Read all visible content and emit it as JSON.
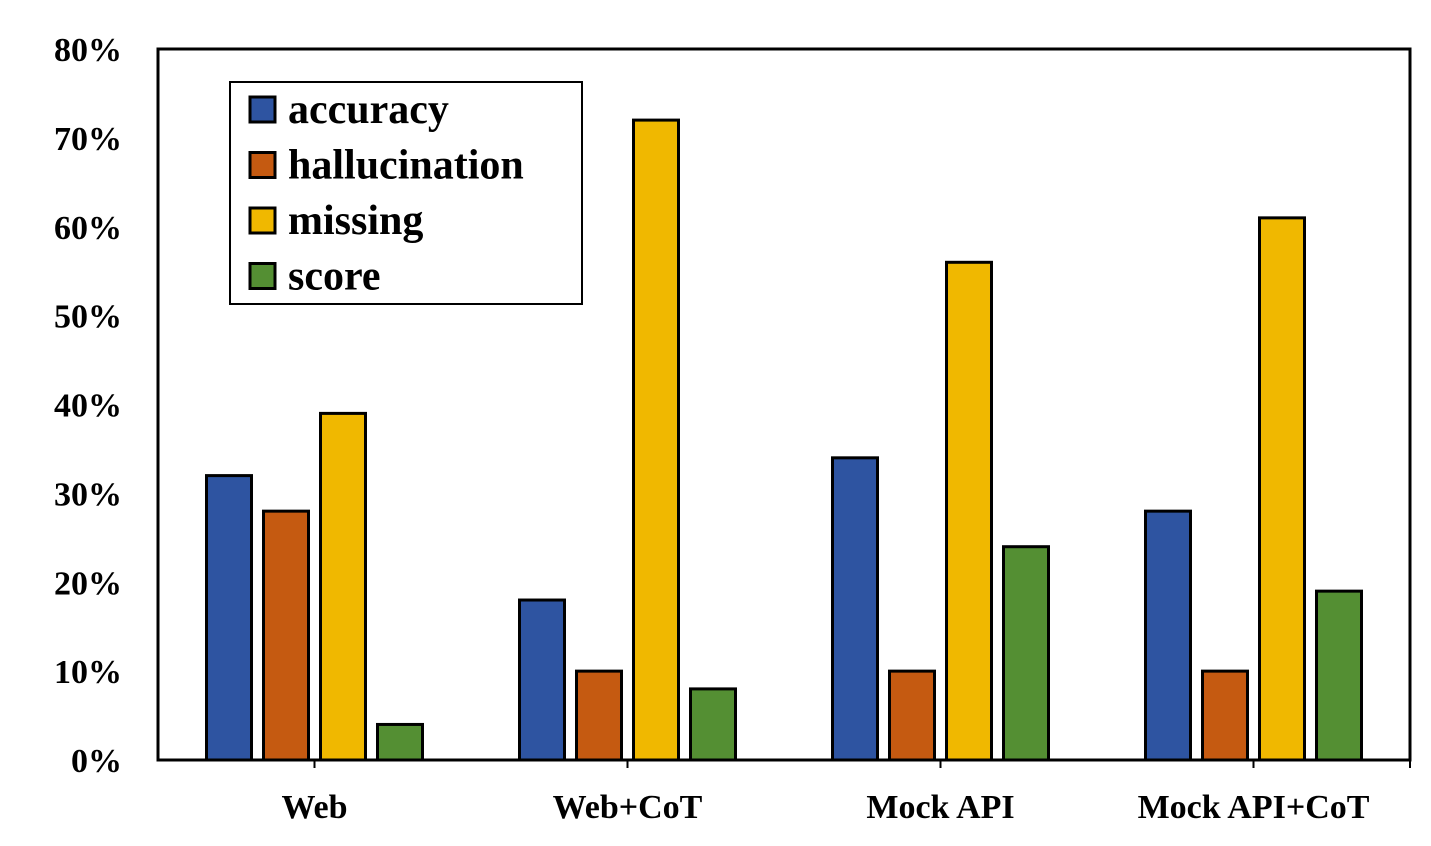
{
  "chart_data": {
    "type": "bar",
    "title": "",
    "xlabel": "",
    "ylabel": "",
    "categories": [
      "Web",
      "Web+CoT",
      "Mock API",
      "Mock API+CoT"
    ],
    "series": [
      {
        "name": "accuracy",
        "color": "#2E54A1",
        "values": [
          32,
          18,
          34,
          28
        ]
      },
      {
        "name": "hallucination",
        "color": "#C55A11",
        "values": [
          28,
          10,
          10,
          10
        ]
      },
      {
        "name": "missing",
        "color": "#F0B800",
        "values": [
          39,
          72,
          56,
          61
        ]
      },
      {
        "name": "score",
        "color": "#548F33",
        "values": [
          4,
          8,
          24,
          19
        ]
      }
    ],
    "ylim": [
      0,
      80
    ],
    "yticks": [
      "0%",
      "10%",
      "20%",
      "30%",
      "40%",
      "50%",
      "60%",
      "70%",
      "80%"
    ],
    "grid": false,
    "legend_position": "top-left"
  }
}
